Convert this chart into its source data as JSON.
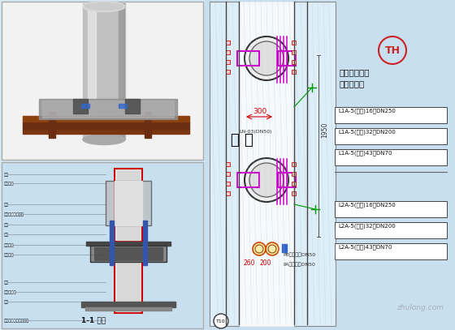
{
  "bg_color": "#d4e8f5",
  "white_bg": "#ffffff",
  "light_blue_bg": "#c8dff0",
  "TH_text": "TH",
  "legend_items_L1": [
    "L1A-5(高区)16层DN250",
    "L1A-5(高区)32层DN200",
    "L1A-5(高区)43层DN70"
  ],
  "legend_items_L2": [
    "L2A-5(高区)16层DN250",
    "L2A-5(高区)32层DN200",
    "L2A-5(高区)43层DN70"
  ],
  "leng_shui_text": "冷 水",
  "dim_300": "300",
  "dim_1950": "1950",
  "dim_260": "260",
  "dim_200": "200",
  "LN_label": "LN-03(DN50)",
  "PB_label": "PB（低区）DN50",
  "PA_label": "PA（低区）DN50",
  "section_title": "1-1 剖面",
  "watermark": "zhulong.com",
  "title_line1": "冷冻水管井固",
  "title_line2": "定支架位置"
}
